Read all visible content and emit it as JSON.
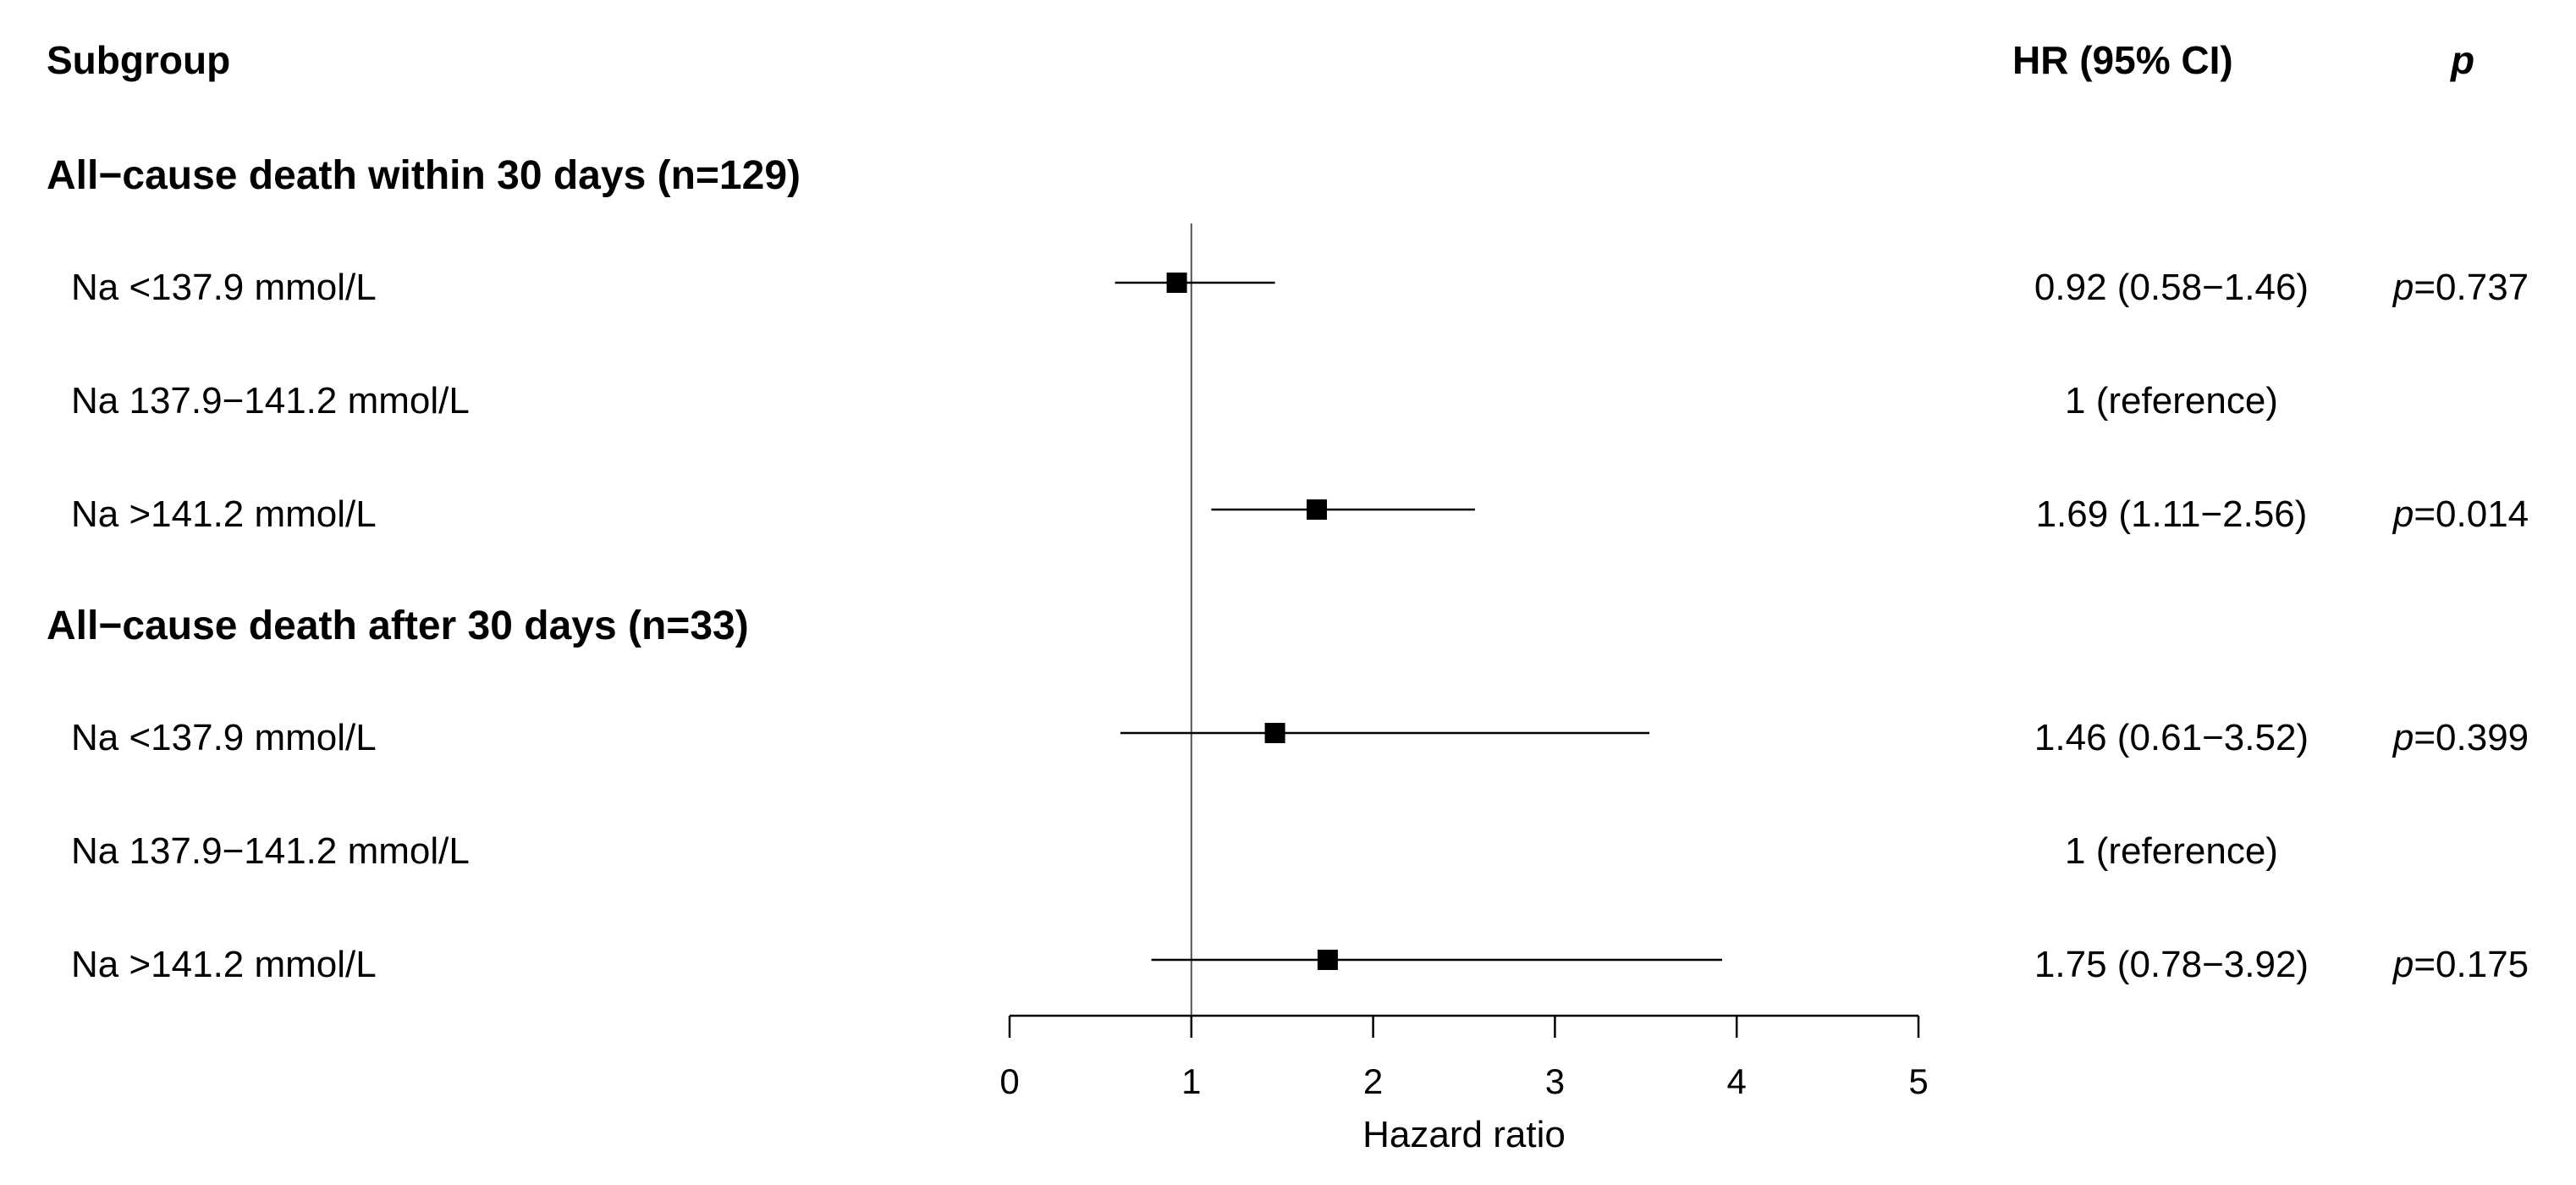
{
  "chart_data": {
    "type": "forest",
    "headers": {
      "subgroup": "Subgroup",
      "hr": "HR (95% CI)",
      "p": "p"
    },
    "xlabel": "Hazard ratio",
    "xlim": [
      0,
      5
    ],
    "xticks": [
      "0",
      "1",
      "2",
      "3",
      "4",
      "5"
    ],
    "reference_line": 1,
    "groups": [
      {
        "title": "All−cause death within 30 days (n=129)",
        "rows": [
          {
            "label": "Na <137.9 mmol/L",
            "hr": 0.92,
            "lo": 0.58,
            "hi": 1.46,
            "hr_text": "0.92 (0.58−1.46)",
            "p_prefix": "p",
            "p_text": "=0.737"
          },
          {
            "label": "Na 137.9−141.2 mmol/L",
            "hr": null,
            "lo": null,
            "hi": null,
            "hr_text": "1 (reference)",
            "p_prefix": "",
            "p_text": ""
          },
          {
            "label": "Na >141.2 mmol/L",
            "hr": 1.69,
            "lo": 1.11,
            "hi": 2.56,
            "hr_text": "1.69 (1.11−2.56)",
            "p_prefix": "p",
            "p_text": "=0.014"
          }
        ]
      },
      {
        "title": "All−cause death after 30 days (n=33)",
        "rows": [
          {
            "label": "Na <137.9 mmol/L",
            "hr": 1.46,
            "lo": 0.61,
            "hi": 3.52,
            "hr_text": "1.46 (0.61−3.52)",
            "p_prefix": "p",
            "p_text": "=0.399"
          },
          {
            "label": "Na 137.9−141.2 mmol/L",
            "hr": null,
            "lo": null,
            "hi": null,
            "hr_text": "1 (reference)",
            "p_prefix": "",
            "p_text": ""
          },
          {
            "label": "Na >141.2 mmol/L",
            "hr": 1.75,
            "lo": 0.78,
            "hi": 3.92,
            "hr_text": "1.75 (0.78−3.92)",
            "p_prefix": "p",
            "p_text": "=0.175"
          }
        ]
      }
    ]
  }
}
